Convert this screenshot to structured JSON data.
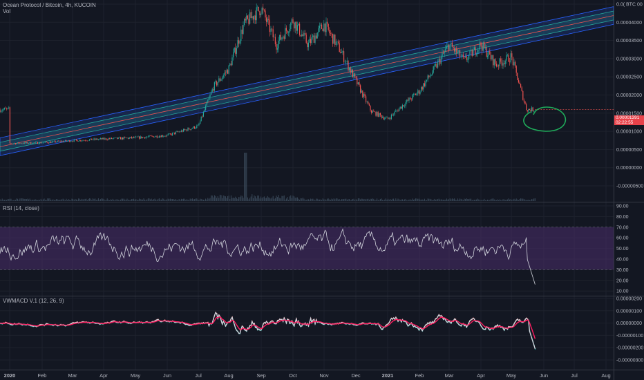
{
  "header": {
    "symbol_title": "Ocean Protocol / Bitcoin, 4h, KUCOIN",
    "volume_label": "Vol",
    "rsi_title": "RSI (14, close)",
    "macd_title": "VWMACD V.1 (12, 26, 9)"
  },
  "price_marker": {
    "value": "0.00001391",
    "countdown": "02:22:55",
    "color": "#e8424a"
  },
  "colors": {
    "background": "#131722",
    "up_candle": "#26a69a",
    "down_candle": "#ef5350",
    "channel_outer": "#2962ff",
    "channel_mid": "#26a69a",
    "channel_center": "#ef5350",
    "rsi_line": "#d1d4dc",
    "rsi_band": "#4a2d6b",
    "macd_line": "#d1d4dc",
    "signal_line": "#ff1e62",
    "annotation": "#1faa5a"
  },
  "chart_data": [
    {
      "type": "candlestick",
      "title": "Ocean Protocol / Bitcoin, 4h, KUCOIN",
      "y_axis_ticks": [
        "0.0( BTC 00",
        "0.00004000",
        "0.00003500",
        "0.00003000",
        "0.00002500",
        "0.00002000",
        "0.00001500",
        "0.00001000",
        "0.00000500",
        "0.00000000",
        "-0.00000500"
      ],
      "ylim": [
        -5.5e-06,
        4.03e-05
      ],
      "x_axis_ticks": [
        "2020",
        "Feb",
        "Mar",
        "Apr",
        "May",
        "Jun",
        "Jul",
        "Aug",
        "Sep",
        "Oct",
        "Nov",
        "Dec",
        "2021",
        "Feb",
        "Mar",
        "Apr",
        "May",
        "Jun",
        "Jul",
        "Aug"
      ],
      "last_price": 1.391e-05,
      "close_path": [
        [
          "2020",
          5.5e-06
        ],
        [
          "Feb",
          5.7e-06
        ],
        [
          "Mar",
          6.2e-06
        ],
        [
          "Apr",
          6.6e-06
        ],
        [
          "May",
          6.9e-06
        ],
        [
          "Jun",
          7.5e-06
        ],
        [
          "Jul",
          9.8e-06
        ],
        [
          "mid-Jul",
          1.95e-05
        ],
        [
          "Aug",
          2.4e-05
        ],
        [
          "mid-Aug",
          3.5e-05
        ],
        [
          "Sep",
          3.9e-05
        ],
        [
          "mid-Sep",
          3e-05
        ],
        [
          "Oct",
          3.6e-05
        ],
        [
          "mid-Oct",
          3e-05
        ],
        [
          "Nov",
          3.5e-05
        ],
        [
          "mid-Nov",
          2.9e-05
        ],
        [
          "Dec",
          2.1e-05
        ],
        [
          "mid-Dec",
          1.35e-05
        ],
        [
          "2021",
          1.15e-05
        ],
        [
          "mid-Jan",
          1.5e-05
        ],
        [
          "Feb",
          1.85e-05
        ],
        [
          "mid-Feb",
          2.4e-05
        ],
        [
          "Mar",
          3e-05
        ],
        [
          "mid-Mar",
          2.6e-05
        ],
        [
          "Apr",
          3e-05
        ],
        [
          "mid-Apr",
          2.5e-05
        ],
        [
          "May",
          2.7e-05
        ],
        [
          "mid-May",
          1.39e-05
        ]
      ],
      "channel": {
        "start": [
          "2020",
          5.2e-06
        ],
        "end": [
          "Aug",
          1.68e-05
        ],
        "outer_offset": 2.2e-06,
        "mid_offset": 1.1e-06
      }
    },
    {
      "type": "line",
      "title": "RSI (14, close)",
      "y_axis_ticks": [
        "90.00",
        "80.00",
        "70.00",
        "60.00",
        "50.00",
        "40.00",
        "30.00",
        "20.00",
        "10.00"
      ],
      "ylim": [
        6,
        92
      ],
      "band": [
        30,
        70
      ],
      "last_value": 15
    },
    {
      "type": "line",
      "title": "VWMACD V.1 (12, 26, 9)",
      "series": [
        {
          "name": "VWMACD"
        },
        {
          "name": "Signal"
        }
      ],
      "y_axis_ticks": [
        "0.00000200",
        "0.00000100",
        "0.00000000",
        "-0.00000100",
        "-0.00000200",
        "-0.00000300"
      ],
      "ylim": [
        -3.2e-06,
        2.2e-06
      ],
      "last_value": -2.2e-06
    }
  ]
}
